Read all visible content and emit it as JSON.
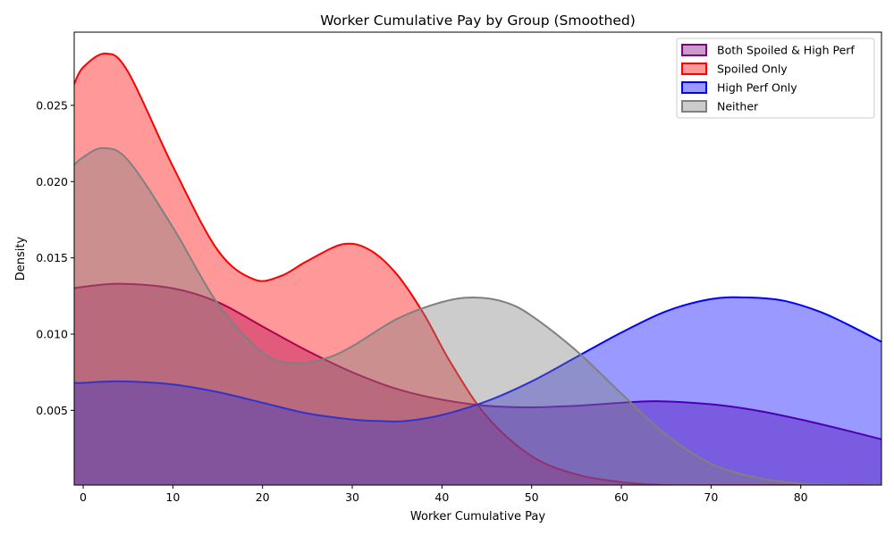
{
  "chart_data": {
    "type": "area",
    "title": "Worker Cumulative Pay by Group (Smoothed)",
    "xlabel": "Worker Cumulative Pay",
    "ylabel": "Density",
    "xlim": [
      -1,
      89
    ],
    "ylim": [
      0.0001,
      0.0298
    ],
    "xticks": [
      0,
      10,
      20,
      30,
      40,
      50,
      60,
      70,
      80
    ],
    "yticks": [
      0.005,
      0.01,
      0.015,
      0.02,
      0.025
    ],
    "ytick_labels": [
      "0.005",
      "0.010",
      "0.015",
      "0.020",
      "0.025"
    ],
    "grid": false,
    "legend_position": "top-right",
    "series": [
      {
        "name": "Both Spoiled & High Perf",
        "color": "#800080",
        "fill_alpha": 0.4,
        "x": [
          -1,
          0,
          4,
          10,
          15,
          20,
          25,
          30,
          35,
          40,
          45,
          50,
          55,
          60,
          64,
          70,
          75,
          80,
          85,
          89
        ],
        "y": [
          0.013,
          0.0131,
          0.0133,
          0.013,
          0.0121,
          0.0105,
          0.0089,
          0.0075,
          0.0064,
          0.0057,
          0.0053,
          0.0052,
          0.0053,
          0.0055,
          0.0056,
          0.0054,
          0.005,
          0.0044,
          0.0037,
          0.0031
        ]
      },
      {
        "name": "Spoiled Only",
        "color": "#ff0000",
        "fill_alpha": 0.4,
        "x": [
          -1,
          0,
          2.5,
          5,
          10,
          15,
          19,
          22,
          25,
          29,
          32,
          35,
          38,
          41,
          45,
          50,
          55,
          60,
          65,
          70,
          75,
          80,
          89
        ],
        "y": [
          0.0264,
          0.0275,
          0.0284,
          0.0272,
          0.021,
          0.0155,
          0.0136,
          0.0138,
          0.0148,
          0.0159,
          0.0155,
          0.0139,
          0.0113,
          0.0081,
          0.0046,
          0.002,
          0.0008,
          0.0003,
          0.0001,
          0.0001,
          0.0001,
          0.0001,
          0.0001
        ]
      },
      {
        "name": "High Perf Only",
        "color": "#0000ff",
        "fill_alpha": 0.4,
        "x": [
          -1,
          0,
          4,
          10,
          15,
          20,
          25,
          30,
          33,
          36,
          40,
          45,
          50,
          55,
          60,
          65,
          70,
          74,
          78,
          82,
          85,
          89
        ],
        "y": [
          0.0068,
          0.0068,
          0.0069,
          0.0067,
          0.0062,
          0.0055,
          0.0048,
          0.0044,
          0.0043,
          0.0043,
          0.0047,
          0.0056,
          0.0069,
          0.0085,
          0.0101,
          0.0115,
          0.0123,
          0.0124,
          0.0122,
          0.0115,
          0.0107,
          0.0095
        ]
      },
      {
        "name": "Neither",
        "color": "#808080",
        "fill_alpha": 0.4,
        "x": [
          -1,
          0,
          2.2,
          5,
          10,
          15,
          20,
          23.5,
          27,
          30,
          35,
          40,
          43.5,
          47,
          50,
          55,
          60,
          65,
          70,
          75,
          80,
          85,
          89
        ],
        "y": [
          0.0211,
          0.0216,
          0.0222,
          0.0214,
          0.017,
          0.012,
          0.0088,
          0.0081,
          0.0084,
          0.0092,
          0.011,
          0.0121,
          0.0124,
          0.0121,
          0.0112,
          0.0089,
          0.0061,
          0.0034,
          0.0015,
          0.0006,
          0.0002,
          0.0001,
          0.0001
        ]
      }
    ]
  }
}
